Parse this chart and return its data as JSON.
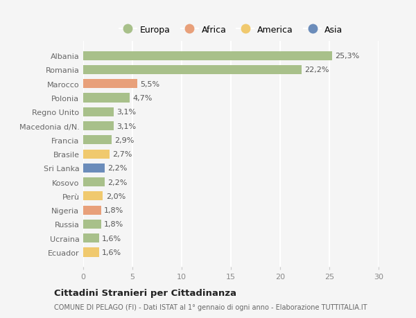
{
  "categories": [
    "Albania",
    "Romania",
    "Marocco",
    "Polonia",
    "Regno Unito",
    "Macedonia d/N.",
    "Francia",
    "Brasile",
    "Sri Lanka",
    "Kosovo",
    "Perù",
    "Nigeria",
    "Russia",
    "Ucraina",
    "Ecuador"
  ],
  "values": [
    25.3,
    22.2,
    5.5,
    4.7,
    3.1,
    3.1,
    2.9,
    2.7,
    2.2,
    2.2,
    2.0,
    1.8,
    1.8,
    1.6,
    1.6
  ],
  "labels": [
    "25,3%",
    "22,2%",
    "5,5%",
    "4,7%",
    "3,1%",
    "3,1%",
    "2,9%",
    "2,7%",
    "2,2%",
    "2,2%",
    "2,0%",
    "1,8%",
    "1,8%",
    "1,6%",
    "1,6%"
  ],
  "continents": [
    "Europa",
    "Europa",
    "Africa",
    "Europa",
    "Europa",
    "Europa",
    "Europa",
    "America",
    "Asia",
    "Europa",
    "America",
    "Africa",
    "Europa",
    "Europa",
    "America"
  ],
  "colors": {
    "Europa": "#a8c08a",
    "Africa": "#e8a07a",
    "America": "#f0c96e",
    "Asia": "#6b8cba"
  },
  "xlim": [
    0,
    30
  ],
  "xticks": [
    0,
    5,
    10,
    15,
    20,
    25,
    30
  ],
  "title": "Cittadini Stranieri per Cittadinanza",
  "subtitle": "COMUNE DI PELAGO (FI) - Dati ISTAT al 1° gennaio di ogni anno - Elaborazione TUTTITALIA.IT",
  "background_color": "#f5f5f5",
  "grid_color": "#ffffff"
}
